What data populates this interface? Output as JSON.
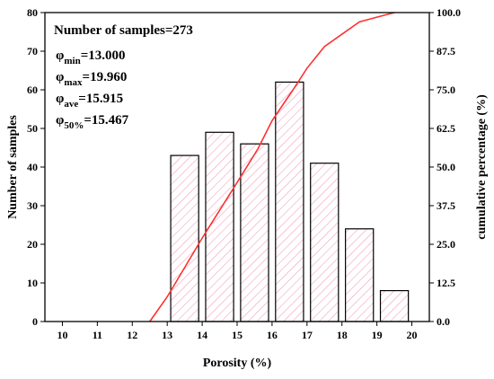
{
  "chart_data": {
    "type": "bar",
    "xlabel": "Porosity (%)",
    "ylabel": "Number of samples",
    "y2label": "cumulative percentage (%)",
    "xlim": [
      9.5,
      20.5
    ],
    "ylim": [
      0,
      80
    ],
    "y2lim": [
      0,
      100
    ],
    "x_ticks": [
      "10",
      "11",
      "12",
      "13",
      "14",
      "15",
      "16",
      "17",
      "18",
      "19",
      "20"
    ],
    "y_ticks": [
      "0",
      "10",
      "20",
      "30",
      "40",
      "50",
      "60",
      "70",
      "80"
    ],
    "y2_ticks": [
      "0.0",
      "12.5",
      "25.0",
      "37.5",
      "50.0",
      "62.5",
      "75.0",
      "87.5",
      "100.0"
    ],
    "bars": {
      "bin_centers": [
        13.5,
        14.5,
        15.5,
        16.5,
        17.5,
        18.5,
        19.5
      ],
      "bin_width": 0.8,
      "values": [
        43,
        49,
        46,
        62,
        41,
        24,
        8
      ],
      "fill_pattern": "diagonal hatch",
      "hatch_color": "#f090b0",
      "edge_color": "#000000"
    },
    "cumulative_line": {
      "x": [
        12.5,
        13.0,
        14.0,
        15.0,
        15.6,
        16.0,
        16.6,
        17.0,
        17.5,
        18.0,
        18.5,
        19.0,
        19.5
      ],
      "y": [
        0,
        8,
        27,
        45,
        56,
        65,
        75,
        82,
        89,
        93,
        97,
        98.5,
        100
      ],
      "color": "#ff3030"
    },
    "annotations": {
      "n_samples": "Number of samples=273",
      "phi_min": {
        "symbol": "φ",
        "sub": "min",
        "value": "=13.000"
      },
      "phi_max": {
        "symbol": "φ",
        "sub": "max",
        "value": "=19.960"
      },
      "phi_ave": {
        "symbol": "φ",
        "sub": "ave",
        "value": "=15.915"
      },
      "phi_50": {
        "symbol": "φ",
        "sub": "50%",
        "value": "=15.467"
      }
    }
  }
}
